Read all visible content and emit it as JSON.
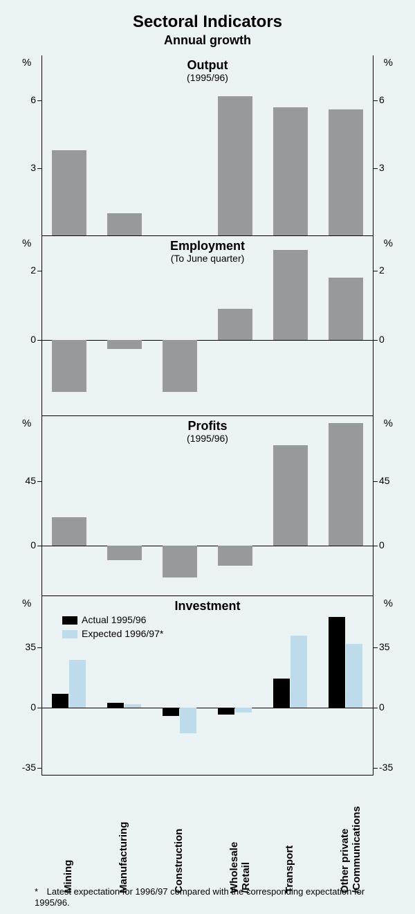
{
  "title": "Sectoral Indicators",
  "subtitle": "Annual growth",
  "background_color": "#eaf2f4",
  "bar_color_gray": "#97999b",
  "bar_color_black": "#000000",
  "bar_color_lightblue": "#bedbec",
  "axis_color": "#000000",
  "pct_symbol": "%",
  "categories": [
    "Mining",
    "Manufacturing",
    "Construction",
    "Wholesale\n/Retail",
    "Transport",
    "Other private\n/Communications"
  ],
  "panels": [
    {
      "title": "Output",
      "sub": "(1995/96)",
      "ylim": [
        0,
        8
      ],
      "yticks": [
        3,
        6
      ],
      "series": [
        {
          "color": "#97999b",
          "values": [
            3.8,
            1.0,
            0,
            6.2,
            5.7,
            5.6
          ]
        }
      ]
    },
    {
      "title": "Employment",
      "sub": "(To June quarter)",
      "ylim": [
        -2.2,
        3.0
      ],
      "yticks": [
        0,
        2
      ],
      "series": [
        {
          "color": "#97999b",
          "values": [
            -1.5,
            -0.25,
            -1.5,
            0.9,
            2.6,
            1.8
          ]
        }
      ]
    },
    {
      "title": "Profits",
      "sub": "(1995/96)",
      "ylim": [
        -35,
        90
      ],
      "yticks": [
        0,
        45
      ],
      "series": [
        {
          "color": "#97999b",
          "values": [
            20,
            -10,
            -22,
            -14,
            70,
            85
          ]
        }
      ]
    },
    {
      "title": "Investment",
      "sub": "",
      "ylim": [
        -40,
        65
      ],
      "yticks": [
        -35,
        0,
        35
      ],
      "legend": [
        {
          "color": "#000000",
          "label": "Actual 1995/96"
        },
        {
          "color": "#bedbec",
          "label": "Expected 1996/97*"
        }
      ],
      "series": [
        {
          "color": "#000000",
          "values": [
            8,
            3,
            -5,
            -4,
            17,
            53
          ]
        },
        {
          "color": "#bedbec",
          "values": [
            28,
            2,
            -15,
            -3,
            42,
            37
          ]
        }
      ]
    }
  ],
  "footnote": "Latest expectation for 1996/97 compared with the corresponding expectation for 1995/96.",
  "footnote_marker": "*"
}
